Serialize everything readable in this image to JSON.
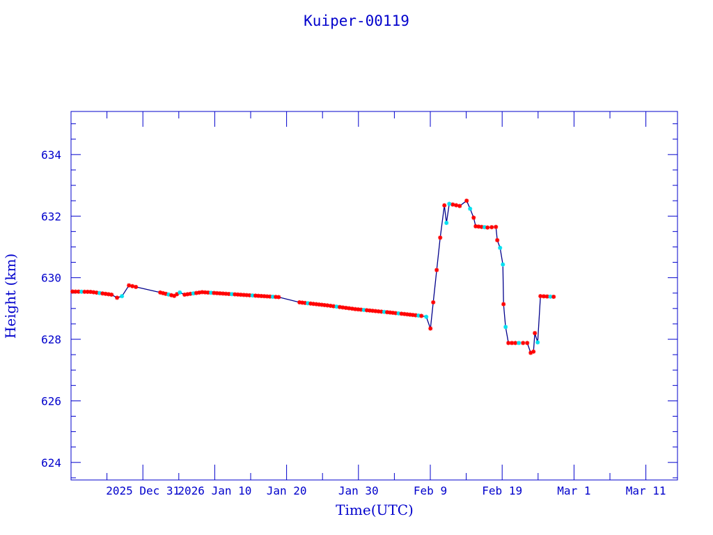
{
  "chart_data": {
    "type": "line",
    "title": "Kuiper-00119",
    "xlabel": "Time(UTC)",
    "ylabel": "Height (km)",
    "x_units": "days since 2025 Dec 31",
    "xlim": [
      -10,
      74.4
    ],
    "ylim": [
      623.43,
      635.4
    ],
    "yticks": [
      624,
      626,
      628,
      630,
      632,
      634
    ],
    "xticks": [
      {
        "d": 0,
        "label": "2025 Dec 31"
      },
      {
        "d": 10,
        "label": "2026 Jan 10"
      },
      {
        "d": 20,
        "label": "Jan 20"
      },
      {
        "d": 30,
        "label": "Jan 30"
      },
      {
        "d": 40,
        "label": "Feb  9"
      },
      {
        "d": 50,
        "label": "Feb 19"
      },
      {
        "d": 60,
        "label": "Mar  1"
      },
      {
        "d": 70,
        "label": "Mar 11"
      }
    ],
    "grid": false,
    "colors": {
      "axis": "#0000cc",
      "line": "#00008b",
      "marker_a": "#ff0000",
      "marker_b": "#00e0f0"
    },
    "points": [
      [
        -9.79,
        629.55,
        "a"
      ],
      [
        -7.27,
        629.54,
        "a"
      ],
      [
        -4.36,
        629.45,
        "a"
      ],
      [
        -3.59,
        629.35,
        "a"
      ],
      [
        -2.91,
        629.4,
        "b"
      ],
      [
        -1.94,
        629.75,
        "a"
      ],
      [
        -0.97,
        629.7,
        "a"
      ],
      [
        2.42,
        629.52,
        "a"
      ],
      [
        4.36,
        629.41,
        "a"
      ],
      [
        5.14,
        629.52,
        "b"
      ],
      [
        5.81,
        629.45,
        "a"
      ],
      [
        8.24,
        629.53,
        "a"
      ],
      [
        14.05,
        629.44,
        "a"
      ],
      [
        18.9,
        629.37,
        "a"
      ],
      [
        21.8,
        629.2,
        "a"
      ],
      [
        25.68,
        629.1,
        "a"
      ],
      [
        29.55,
        628.98,
        "a"
      ],
      [
        34.4,
        628.87,
        "a"
      ],
      [
        38.76,
        628.76,
        "a"
      ],
      [
        39.44,
        628.73,
        "b"
      ],
      [
        40.02,
        628.35,
        "a"
      ],
      [
        40.41,
        629.2,
        "a"
      ],
      [
        40.89,
        630.25,
        "a"
      ],
      [
        41.38,
        631.3,
        "a"
      ],
      [
        41.96,
        632.35,
        "a"
      ],
      [
        42.25,
        631.78,
        "b"
      ],
      [
        42.64,
        632.4,
        "b"
      ],
      [
        44.09,
        632.33,
        "a"
      ],
      [
        45.06,
        632.5,
        "a"
      ],
      [
        45.54,
        632.24,
        "b"
      ],
      [
        46.03,
        631.95,
        "a"
      ],
      [
        46.32,
        631.67,
        "a"
      ],
      [
        47.97,
        631.63,
        "a"
      ],
      [
        49.13,
        631.65,
        "a"
      ],
      [
        49.32,
        631.22,
        "a"
      ],
      [
        49.71,
        630.97,
        "b"
      ],
      [
        50.1,
        630.43,
        "b"
      ],
      [
        50.19,
        629.14,
        "a"
      ],
      [
        50.48,
        628.4,
        "b"
      ],
      [
        50.87,
        627.88,
        "a"
      ],
      [
        52.33,
        627.88,
        "b"
      ],
      [
        53.49,
        627.88,
        "a"
      ],
      [
        53.97,
        627.56,
        "a"
      ],
      [
        54.36,
        627.6,
        "a"
      ],
      [
        54.55,
        628.2,
        "a"
      ],
      [
        54.94,
        627.9,
        "b"
      ],
      [
        55.33,
        629.4,
        "a"
      ],
      [
        57.17,
        629.38,
        "a"
      ]
    ]
  }
}
